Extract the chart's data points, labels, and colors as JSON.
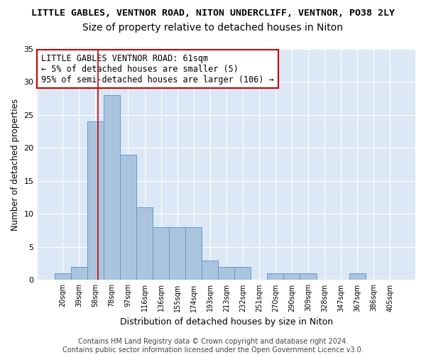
{
  "title1": "LITTLE GABLES, VENTNOR ROAD, NITON UNDERCLIFF, VENTNOR, PO38 2LY",
  "title2": "Size of property relative to detached houses in Niton",
  "xlabel": "Distribution of detached houses by size in Niton",
  "ylabel": "Number of detached properties",
  "bin_labels": [
    "20sqm",
    "39sqm",
    "58sqm",
    "78sqm",
    "97sqm",
    "116sqm",
    "136sqm",
    "155sqm",
    "174sqm",
    "193sqm",
    "213sqm",
    "232sqm",
    "251sqm",
    "270sqm",
    "290sqm",
    "309sqm",
    "328sqm",
    "347sqm",
    "367sqm",
    "386sqm",
    "405sqm"
  ],
  "bar_values": [
    1,
    2,
    24,
    28,
    19,
    11,
    8,
    8,
    8,
    3,
    2,
    2,
    0,
    1,
    1,
    1,
    0,
    0,
    1,
    0,
    0
  ],
  "bar_color": "#aac4de",
  "bar_edge_color": "#5b9bd5",
  "annotation_text": "LITTLE GABLES VENTNOR ROAD: 61sqm\n← 5% of detached houses are smaller (5)\n95% of semi-detached houses are larger (106) →",
  "red_line_x": 2.15,
  "vline_color": "#cc0000",
  "annotation_box_edge": "#cc0000",
  "footer": "Contains HM Land Registry data © Crown copyright and database right 2024.\nContains public sector information licensed under the Open Government Licence v3.0.",
  "ylim": [
    0,
    35
  ],
  "yticks": [
    0,
    5,
    10,
    15,
    20,
    25,
    30,
    35
  ],
  "background_color": "#dce8f5",
  "grid_color": "#ffffff",
  "title1_fontsize": 9.5,
  "title2_fontsize": 10,
  "annotation_fontsize": 8.5,
  "footer_fontsize": 7,
  "fig_width": 6.0,
  "fig_height": 5.0
}
